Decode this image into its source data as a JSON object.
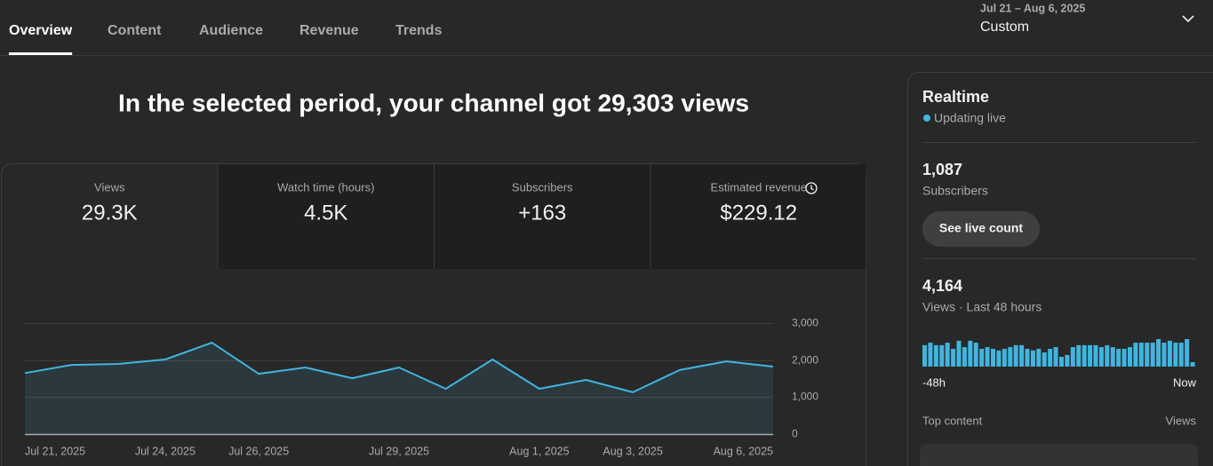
{
  "tabs": [
    "Overview",
    "Content",
    "Audience",
    "Revenue",
    "Trends"
  ],
  "date_range": {
    "range": "Jul 21 – Aug 6, 2025",
    "label": "Custom"
  },
  "headline": "In the selected period, your channel got 29,303 views",
  "metrics": [
    {
      "label": "Views",
      "value": "29.3K"
    },
    {
      "label": "Watch time (hours)",
      "value": "4.5K"
    },
    {
      "label": "Subscribers",
      "value": "+163"
    },
    {
      "label": "Estimated revenue",
      "value": "$229.12"
    }
  ],
  "realtime": {
    "title": "Realtime",
    "status": "Updating live",
    "subscribers": {
      "value": "1,087",
      "label": "Subscribers"
    },
    "button": "See live count",
    "views": {
      "value": "4,164",
      "label": "Views · Last 48 hours"
    },
    "top_content": "Top content",
    "views_column": "Views"
  },
  "chart_data": [
    {
      "type": "line",
      "categories": [
        "Jul 21, 2025",
        null,
        null,
        "Jul 24, 2025",
        null,
        "Jul 26, 2025",
        null,
        null,
        "Jul 29, 2025",
        null,
        null,
        "Aug 1, 2025",
        null,
        "Aug 3, 2025",
        null,
        null,
        "Aug 6, 2025"
      ],
      "values": [
        1650,
        1870,
        1895,
        2015,
        2470,
        1630,
        1800,
        1510,
        1800,
        1225,
        2015,
        1225,
        1465,
        1130,
        1730,
        1965,
        1825
      ],
      "color": "#41b4df",
      "ylim": [
        0,
        3000
      ],
      "yticks": [
        0,
        {
          "value": 1000,
          "label": "1,000"
        },
        {
          "value": 2000,
          "label": "2,000"
        },
        {
          "value": 3000,
          "label": "3,000"
        }
      ],
      "grid": true
    },
    {
      "type": "bar",
      "categories": [
        "-48h",
        null,
        null,
        null,
        null,
        null,
        null,
        null,
        null,
        null,
        null,
        null,
        null,
        null,
        null,
        null,
        null,
        null,
        null,
        null,
        null,
        null,
        null,
        null,
        null,
        null,
        null,
        null,
        null,
        null,
        null,
        null,
        null,
        null,
        null,
        null,
        null,
        null,
        null,
        null,
        null,
        null,
        null,
        null,
        null,
        null,
        null,
        "Now"
      ],
      "values": [
        77,
        86,
        77,
        77,
        86,
        64,
        93,
        70,
        93,
        86,
        64,
        70,
        64,
        58,
        64,
        70,
        77,
        77,
        64,
        58,
        64,
        51,
        64,
        70,
        35,
        42,
        70,
        77,
        77,
        77,
        77,
        70,
        77,
        70,
        64,
        64,
        70,
        86,
        86,
        86,
        86,
        99,
        86,
        93,
        86,
        86,
        99,
        16
      ],
      "color": "#41b4df"
    }
  ]
}
